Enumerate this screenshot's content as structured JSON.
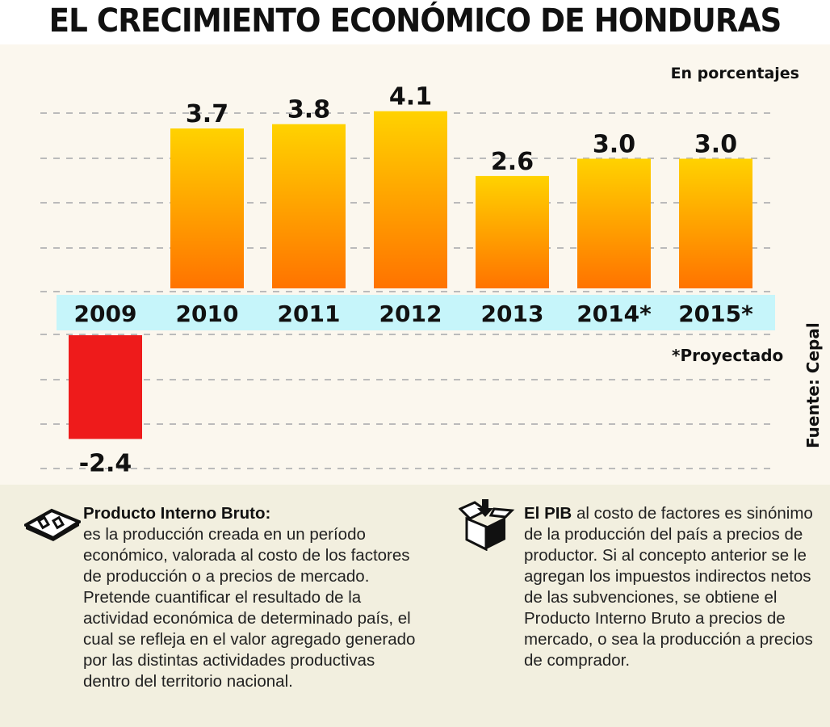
{
  "title": "EL CRECIMIENTO ECONÓMICO DE HONDURAS",
  "unit_label": "En porcentajes",
  "footnote": "*Proyectado",
  "source": "Fuente: Cepal",
  "chart_data": {
    "type": "bar",
    "title": "EL CRECIMIENTO ECONÓMICO DE HONDURAS",
    "categories": [
      "2009",
      "2010",
      "2011",
      "2012",
      "2013",
      "2014*",
      "2015*"
    ],
    "values": [
      -2.4,
      3.7,
      3.8,
      4.1,
      2.6,
      3.0,
      3.0
    ],
    "data_labels": [
      "-2.4",
      "3.7",
      "3.8",
      "4.1",
      "2.6",
      "3.0",
      "3.0"
    ],
    "ylabel": "En porcentajes",
    "grid": true,
    "colors": {
      "positive_top": "#ffd200",
      "positive_bottom": "#ff7300",
      "negative": "#ee1b1b",
      "category_band": "#c6f5fa"
    }
  },
  "notes": [
    {
      "icon": "money-icon",
      "heading": "Producto Interno Bruto:",
      "text": "es la producción creada en un período económico, valorada al costo de los factores de producción o a precios de mercado. Pretende cuantificar el resultado de la actividad económica de determinado país, el cual se refleja en el valor agregado generado por las distintas actividades productivas dentro del territorio nacional."
    },
    {
      "icon": "box-icon",
      "heading": "El PIB",
      "text": " al costo de factores es sinónimo de la producción del país a precios de productor. Si al concepto anterior se le agregan los impuestos indirectos netos de las subvenciones, se obtiene el Producto Interno Bruto a precios de mercado, o sea la producción a precios de comprador."
    }
  ]
}
